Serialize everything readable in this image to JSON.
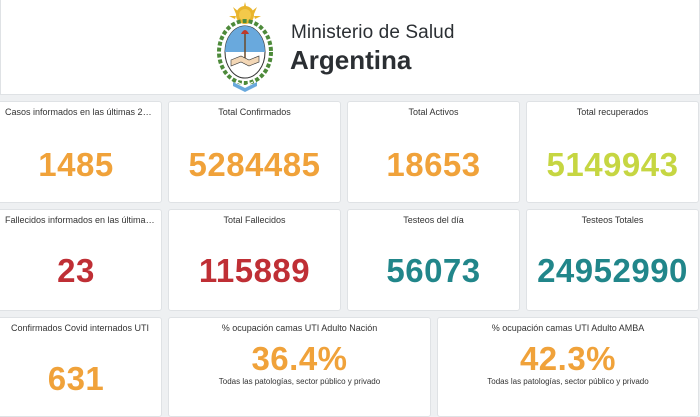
{
  "header": {
    "emblem": "argentina-coat-of-arms",
    "ministry": "Ministerio de Salud",
    "country": "Argentina"
  },
  "colors": {
    "orange": "#f0a23a",
    "lime": "#c6d642",
    "red": "#bf2f35",
    "teal": "#21868a"
  },
  "cards": [
    {
      "label": "Casos informados en las últimas 24…",
      "value": "1485",
      "color": "#f0a23a"
    },
    {
      "label": "Total Confirmados",
      "value": "5284485",
      "color": "#f0a23a"
    },
    {
      "label": "Total Activos",
      "value": "18653",
      "color": "#f0a23a"
    },
    {
      "label": "Total recuperados",
      "value": "5149943",
      "color": "#c6d642"
    },
    {
      "label": "Fallecidos informados en las últimas…",
      "value": "23",
      "color": "#bf2f35"
    },
    {
      "label": "Total Fallecidos",
      "value": "115889",
      "color": "#bf2f35"
    },
    {
      "label": "Testeos del día",
      "value": "56073",
      "color": "#21868a"
    },
    {
      "label": "Testeos Totales",
      "value": "24952990",
      "color": "#21868a"
    },
    {
      "label": "Confirmados Covid internados UTI",
      "value": "631",
      "color": "#f0a23a"
    },
    {
      "label": "% ocupación camas UTI Adulto Nación",
      "value": "36.4%",
      "color": "#f0a23a",
      "note": "Todas las patologías, sector público y privado"
    },
    {
      "label": "% ocupación camas UTI Adulto AMBA",
      "value": "42.3%",
      "color": "#f0a23a",
      "note": "Todas las patologías, sector público y privado"
    }
  ]
}
